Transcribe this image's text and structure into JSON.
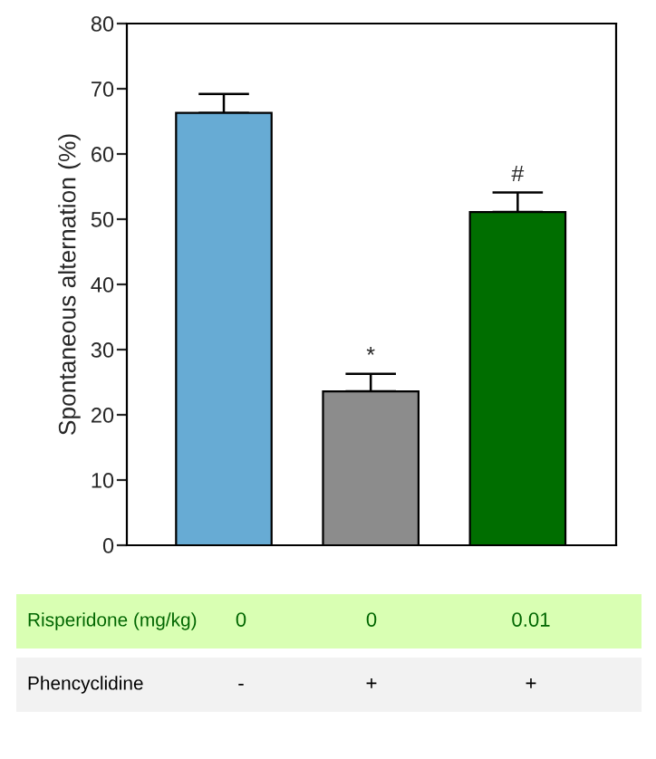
{
  "chart_data": {
    "type": "bar",
    "ylabel": "Spontaneous alternation (%)",
    "categories": [
      null,
      null,
      null
    ],
    "values": [
      66.3,
      23.6,
      51.1
    ],
    "errors": [
      2.9,
      2.7,
      3.0
    ],
    "colors": [
      "#67abd4",
      "#8c8c8c",
      "#006e00"
    ],
    "value_labels": [
      null,
      "*",
      "#"
    ],
    "ylim": [
      0,
      80
    ],
    "yticks": [
      0,
      10,
      20,
      30,
      40,
      50,
      60,
      70,
      80
    ],
    "annotations": [
      "Risperidone (mg/kg)",
      "0",
      "0",
      "0.01",
      "Phencyclidine",
      "-",
      "+",
      "+"
    ]
  }
}
